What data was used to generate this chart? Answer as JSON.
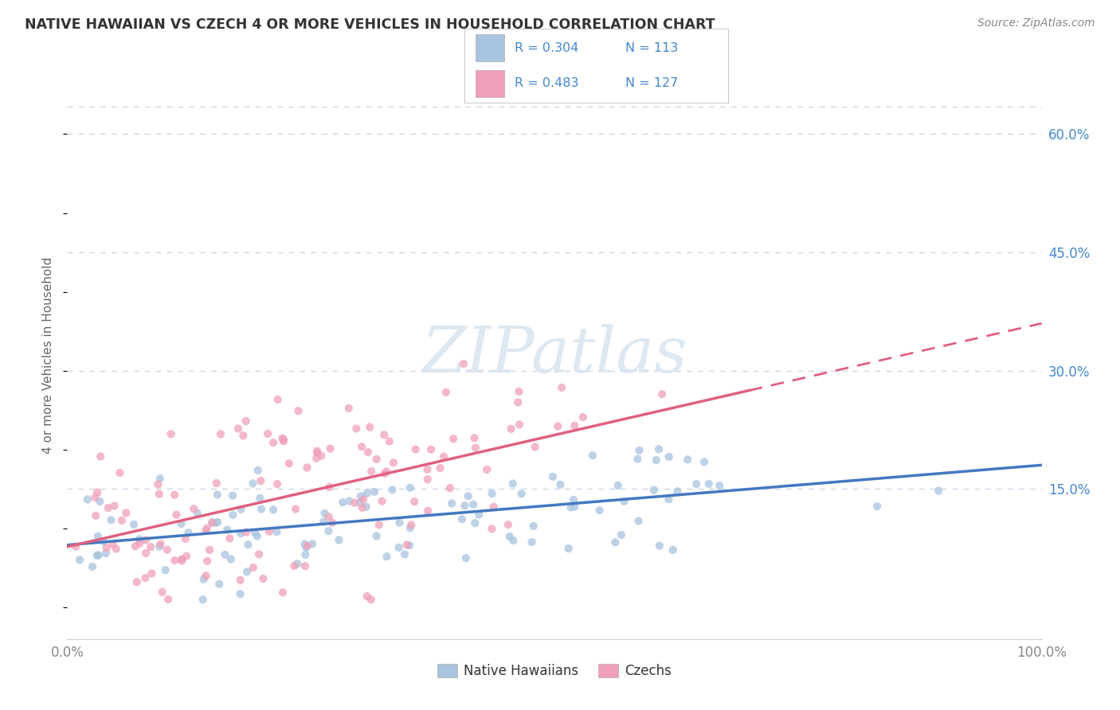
{
  "title": "NATIVE HAWAIIAN VS CZECH 4 OR MORE VEHICLES IN HOUSEHOLD CORRELATION CHART",
  "source_text": "Source: ZipAtlas.com",
  "ylabel": "4 or more Vehicles in Household",
  "xlim": [
    0.0,
    1.0
  ],
  "ylim": [
    -0.04,
    0.68
  ],
  "ytick_vals": [
    0.15,
    0.3,
    0.45,
    0.6
  ],
  "background_color": "#ffffff",
  "grid_color": "#c8d8e8",
  "color_blue": "#a8c4e0",
  "color_pink": "#f0a0b8",
  "line_color_blue": "#4478c0",
  "line_color_pink": "#e06080",
  "text_color_blue": "#4488cc",
  "watermark_color": "#d8e4f0",
  "legend_entries": [
    {
      "label": "R = 0.304   N = 113",
      "color": "#a8c4e0"
    },
    {
      "label": "R = 0.483   N = 127",
      "color": "#f0a0b8"
    }
  ],
  "bottom_legend": [
    {
      "label": "Native Hawaiians",
      "color": "#a8c4e0"
    },
    {
      "label": "Czechs",
      "color": "#f0a0b8"
    }
  ]
}
